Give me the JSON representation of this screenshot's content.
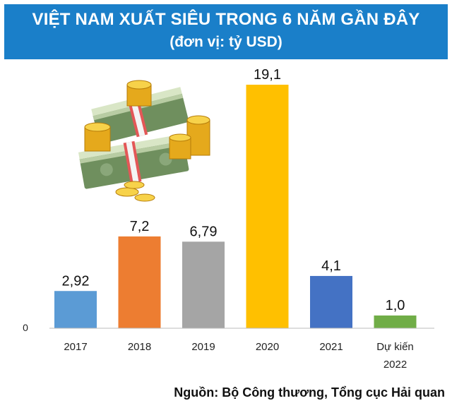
{
  "header": {
    "title": "VIỆT NAM XUẤT SIÊU TRONG 6 NĂM GẦN ĐÂY",
    "subtitle": "(đơn vị: tỷ USD)"
  },
  "source": "Nguồn: Bộ Công thương, Tổng cục Hải quan",
  "chart_data": {
    "type": "bar",
    "title": "VIỆT NAM XUẤT SIÊU TRONG 6 NĂM GẦN ĐÂY",
    "subtitle": "(đơn vị: tỷ USD)",
    "categories": [
      [
        "2017"
      ],
      [
        "2018"
      ],
      [
        "2019"
      ],
      [
        "2020"
      ],
      [
        "2021"
      ],
      [
        "Dự kiến",
        "2022"
      ]
    ],
    "values": [
      2.92,
      7.2,
      6.79,
      19.1,
      4.1,
      1.0
    ],
    "value_labels": [
      "2,92",
      "7,2",
      "6,79",
      "19,1",
      "4,1",
      "1,0"
    ],
    "colors": [
      "#5b9bd5",
      "#ed7d31",
      "#a5a5a5",
      "#ffc000",
      "#4472c4",
      "#70ad47"
    ],
    "y_zero_label": "0",
    "ylim": [
      0,
      19.1
    ],
    "grid": false,
    "legend": "none"
  },
  "illustration": {
    "icon": "money-stacks-and-gold-coins-icon"
  }
}
